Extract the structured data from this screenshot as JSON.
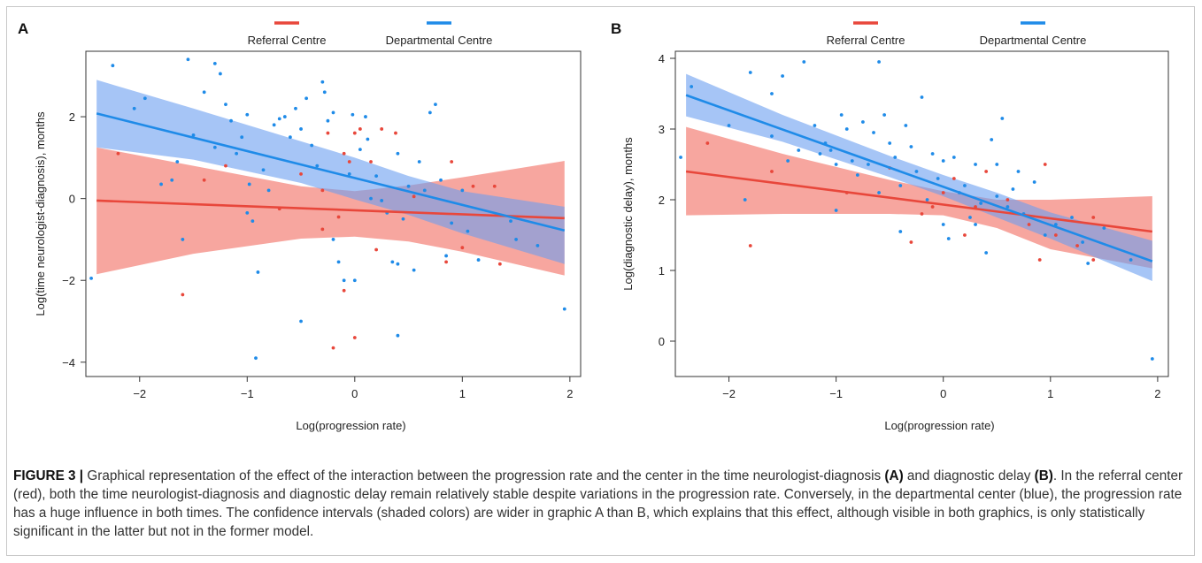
{
  "chart_data": [
    {
      "type": "scatter",
      "panel_label": "A",
      "xlabel": "Log(progression rate)",
      "ylabel": "Log(time neurologist-diagnosis), months",
      "xlim": [
        -2.5,
        2.1
      ],
      "ylim": [
        -4.35,
        3.6
      ],
      "xticks": [
        -2,
        -1,
        0,
        1,
        2
      ],
      "yticks": [
        -4,
        -2,
        0,
        2
      ],
      "legend_position": "top-center",
      "series": [
        {
          "name": "Referral Centre",
          "color": "#e8473b",
          "band_color": "#f4837a",
          "fit_line": {
            "x": [
              -2.4,
              1.95
            ],
            "y": [
              -0.05,
              -0.48
            ]
          },
          "ci_upper": [
            [
              -2.4,
              1.25
            ],
            [
              -1.5,
              0.8
            ],
            [
              -0.5,
              0.3
            ],
            [
              0.0,
              0.18
            ],
            [
              0.5,
              0.32
            ],
            [
              1.0,
              0.52
            ],
            [
              1.95,
              0.92
            ]
          ],
          "ci_lower": [
            [
              -2.4,
              -1.85
            ],
            [
              -1.5,
              -1.35
            ],
            [
              -0.5,
              -0.98
            ],
            [
              0.0,
              -0.93
            ],
            [
              0.5,
              -1.05
            ],
            [
              1.0,
              -1.3
            ],
            [
              1.95,
              -1.88
            ]
          ],
          "points": [
            [
              -2.2,
              1.1
            ],
            [
              -1.6,
              -2.35
            ],
            [
              -1.4,
              0.45
            ],
            [
              -1.2,
              0.8
            ],
            [
              -0.7,
              -0.25
            ],
            [
              -0.5,
              0.6
            ],
            [
              -0.3,
              0.2
            ],
            [
              -0.3,
              -0.75
            ],
            [
              -0.25,
              1.6
            ],
            [
              -0.2,
              -3.65
            ],
            [
              -0.15,
              -0.45
            ],
            [
              -0.1,
              1.1
            ],
            [
              -0.1,
              -2.25
            ],
            [
              -0.05,
              0.9
            ],
            [
              0.0,
              -3.4
            ],
            [
              0.0,
              1.6
            ],
            [
              0.05,
              1.7
            ],
            [
              0.15,
              0.9
            ],
            [
              0.2,
              -1.25
            ],
            [
              0.25,
              1.7
            ],
            [
              0.38,
              1.6
            ],
            [
              0.55,
              0.05
            ],
            [
              0.85,
              -1.55
            ],
            [
              0.9,
              0.9
            ],
            [
              1.0,
              -1.2
            ],
            [
              1.1,
              0.3
            ],
            [
              1.3,
              0.3
            ],
            [
              1.35,
              -1.6
            ]
          ]
        },
        {
          "name": "Departmental Centre",
          "color": "#1f8be8",
          "band_color": "#6b9ff0",
          "fit_line": {
            "x": [
              -2.4,
              1.95
            ],
            "y": [
              2.08,
              -0.78
            ]
          },
          "ci_upper": [
            [
              -2.4,
              2.9
            ],
            [
              -1.5,
              2.2
            ],
            [
              -0.5,
              1.4
            ],
            [
              0.0,
              1.0
            ],
            [
              0.5,
              0.55
            ],
            [
              1.0,
              0.18
            ],
            [
              1.95,
              -0.2
            ]
          ],
          "ci_lower": [
            [
              -2.4,
              1.25
            ],
            [
              -1.5,
              0.95
            ],
            [
              -0.5,
              0.38
            ],
            [
              0.0,
              -0.02
            ],
            [
              0.5,
              -0.4
            ],
            [
              1.0,
              -0.85
            ],
            [
              1.95,
              -1.6
            ]
          ],
          "points": [
            [
              -2.45,
              -1.95
            ],
            [
              -2.25,
              3.25
            ],
            [
              -2.05,
              2.2
            ],
            [
              -1.95,
              2.45
            ],
            [
              -1.8,
              0.35
            ],
            [
              -1.7,
              0.45
            ],
            [
              -1.55,
              3.4
            ],
            [
              -1.5,
              1.55
            ],
            [
              -1.4,
              2.6
            ],
            [
              -1.3,
              3.3
            ],
            [
              -1.3,
              1.25
            ],
            [
              -1.25,
              3.05
            ],
            [
              -1.2,
              2.3
            ],
            [
              -1.15,
              1.9
            ],
            [
              -1.1,
              1.1
            ],
            [
              -1.05,
              1.5
            ],
            [
              -1.0,
              2.05
            ],
            [
              -1.0,
              -0.35
            ],
            [
              -0.98,
              0.35
            ],
            [
              -0.95,
              -0.55
            ],
            [
              -0.92,
              -3.9
            ],
            [
              -0.9,
              -1.8
            ],
            [
              -0.85,
              0.7
            ],
            [
              -0.8,
              0.2
            ],
            [
              -0.75,
              1.8
            ],
            [
              -0.7,
              1.95
            ],
            [
              -0.65,
              2.0
            ],
            [
              -0.6,
              1.5
            ],
            [
              -0.55,
              2.2
            ],
            [
              -0.5,
              1.7
            ],
            [
              -0.45,
              2.45
            ],
            [
              -0.4,
              1.3
            ],
            [
              -0.35,
              0.8
            ],
            [
              -0.3,
              2.85
            ],
            [
              -0.28,
              2.6
            ],
            [
              -0.25,
              1.9
            ],
            [
              -0.2,
              2.1
            ],
            [
              -0.2,
              -1.0
            ],
            [
              -0.15,
              -1.55
            ],
            [
              -0.1,
              -2.0
            ],
            [
              -0.05,
              0.6
            ],
            [
              -0.02,
              2.05
            ],
            [
              0.0,
              -2.0
            ],
            [
              0.05,
              1.2
            ],
            [
              0.1,
              2.0
            ],
            [
              0.12,
              1.45
            ],
            [
              0.15,
              0.0
            ],
            [
              0.2,
              0.55
            ],
            [
              0.25,
              -0.05
            ],
            [
              0.3,
              -0.35
            ],
            [
              0.35,
              -1.55
            ],
            [
              0.4,
              -1.6
            ],
            [
              0.4,
              -3.35
            ],
            [
              0.45,
              -0.5
            ],
            [
              0.5,
              0.3
            ],
            [
              0.55,
              -1.75
            ],
            [
              0.6,
              0.9
            ],
            [
              0.65,
              0.2
            ],
            [
              0.7,
              2.1
            ],
            [
              0.75,
              2.3
            ],
            [
              0.8,
              0.45
            ],
            [
              0.85,
              -1.4
            ],
            [
              0.9,
              -0.6
            ],
            [
              1.0,
              0.2
            ],
            [
              1.05,
              -0.8
            ],
            [
              1.15,
              -1.5
            ],
            [
              1.45,
              -0.55
            ],
            [
              1.5,
              -1.0
            ],
            [
              1.7,
              -1.15
            ],
            [
              1.95,
              -2.7
            ],
            [
              -1.6,
              -1.0
            ],
            [
              -1.65,
              0.9
            ],
            [
              -0.5,
              -3.0
            ],
            [
              0.4,
              1.1
            ]
          ]
        }
      ]
    },
    {
      "type": "scatter",
      "panel_label": "B",
      "xlabel": "Log(progression rate)",
      "ylabel": "Log(diagnostic delay), months",
      "xlim": [
        -2.5,
        2.1
      ],
      "ylim": [
        -0.5,
        4.1
      ],
      "xticks": [
        -2,
        -1,
        0,
        1,
        2
      ],
      "yticks": [
        0,
        1,
        2,
        3,
        4
      ],
      "legend_position": "top-center",
      "series": [
        {
          "name": "Referral Centre",
          "color": "#e8473b",
          "band_color": "#f4837a",
          "fit_line": {
            "x": [
              -2.4,
              1.95
            ],
            "y": [
              2.4,
              1.55
            ]
          },
          "ci_upper": [
            [
              -2.4,
              3.03
            ],
            [
              -1.5,
              2.65
            ],
            [
              -0.5,
              2.28
            ],
            [
              0.0,
              2.12
            ],
            [
              0.5,
              2.0
            ],
            [
              1.0,
              2.0
            ],
            [
              1.95,
              2.05
            ]
          ],
          "ci_lower": [
            [
              -2.4,
              1.78
            ],
            [
              -1.5,
              1.8
            ],
            [
              -0.5,
              1.8
            ],
            [
              0.0,
              1.78
            ],
            [
              0.5,
              1.6
            ],
            [
              1.0,
              1.3
            ],
            [
              1.95,
              1.03
            ]
          ],
          "points": [
            [
              -2.2,
              2.8
            ],
            [
              -1.8,
              1.35
            ],
            [
              -1.6,
              2.4
            ],
            [
              -0.9,
              2.1
            ],
            [
              -0.5,
              2.45
            ],
            [
              -0.3,
              1.4
            ],
            [
              -0.2,
              1.8
            ],
            [
              -0.1,
              1.9
            ],
            [
              0.0,
              2.1
            ],
            [
              0.1,
              2.3
            ],
            [
              0.2,
              1.5
            ],
            [
              0.3,
              1.9
            ],
            [
              0.4,
              2.4
            ],
            [
              0.6,
              2.0
            ],
            [
              0.8,
              1.65
            ],
            [
              0.9,
              1.15
            ],
            [
              0.95,
              2.5
            ],
            [
              1.05,
              1.5
            ],
            [
              1.25,
              1.35
            ],
            [
              1.4,
              1.15
            ],
            [
              1.4,
              1.75
            ]
          ]
        },
        {
          "name": "Departmental Centre",
          "color": "#1f8be8",
          "band_color": "#6b9ff0",
          "fit_line": {
            "x": [
              -2.4,
              1.95
            ],
            "y": [
              3.48,
              1.13
            ]
          },
          "ci_upper": [
            [
              -2.4,
              3.78
            ],
            [
              -1.5,
              3.2
            ],
            [
              -0.5,
              2.62
            ],
            [
              0.0,
              2.35
            ],
            [
              0.5,
              2.1
            ],
            [
              1.0,
              1.82
            ],
            [
              1.95,
              1.42
            ]
          ],
          "ci_lower": [
            [
              -2.4,
              3.18
            ],
            [
              -1.5,
              2.82
            ],
            [
              -0.5,
              2.32
            ],
            [
              0.0,
              2.05
            ],
            [
              0.5,
              1.75
            ],
            [
              1.0,
              1.45
            ],
            [
              1.95,
              0.85
            ]
          ],
          "points": [
            [
              -2.45,
              2.6
            ],
            [
              -2.35,
              3.6
            ],
            [
              -2.0,
              3.05
            ],
            [
              -1.85,
              2.0
            ],
            [
              -1.8,
              3.8
            ],
            [
              -1.6,
              3.5
            ],
            [
              -1.5,
              3.75
            ],
            [
              -1.45,
              2.55
            ],
            [
              -1.35,
              2.7
            ],
            [
              -1.3,
              3.95
            ],
            [
              -1.2,
              3.05
            ],
            [
              -1.15,
              2.65
            ],
            [
              -1.1,
              2.8
            ],
            [
              -1.05,
              2.7
            ],
            [
              -1.0,
              2.5
            ],
            [
              -0.95,
              3.2
            ],
            [
              -0.9,
              3.0
            ],
            [
              -0.85,
              2.55
            ],
            [
              -0.8,
              2.35
            ],
            [
              -0.75,
              3.1
            ],
            [
              -0.7,
              2.5
            ],
            [
              -0.65,
              2.95
            ],
            [
              -0.6,
              3.95
            ],
            [
              -0.6,
              2.1
            ],
            [
              -0.55,
              3.2
            ],
            [
              -0.5,
              2.8
            ],
            [
              -0.45,
              2.6
            ],
            [
              -0.4,
              2.2
            ],
            [
              -0.35,
              3.05
            ],
            [
              -0.3,
              2.75
            ],
            [
              -0.25,
              2.4
            ],
            [
              -0.2,
              3.45
            ],
            [
              -0.15,
              2.0
            ],
            [
              -0.1,
              2.65
            ],
            [
              -0.05,
              2.3
            ],
            [
              0.0,
              2.55
            ],
            [
              0.0,
              1.65
            ],
            [
              0.05,
              1.45
            ],
            [
              0.1,
              2.6
            ],
            [
              0.15,
              2.1
            ],
            [
              0.2,
              2.2
            ],
            [
              0.25,
              1.75
            ],
            [
              0.3,
              2.5
            ],
            [
              0.35,
              1.95
            ],
            [
              0.4,
              1.25
            ],
            [
              0.45,
              2.85
            ],
            [
              0.5,
              2.05
            ],
            [
              0.55,
              3.15
            ],
            [
              0.6,
              1.9
            ],
            [
              0.65,
              2.15
            ],
            [
              0.7,
              2.4
            ],
            [
              0.75,
              1.8
            ],
            [
              0.85,
              2.25
            ],
            [
              0.95,
              1.5
            ],
            [
              1.05,
              1.65
            ],
            [
              1.2,
              1.75
            ],
            [
              1.3,
              1.4
            ],
            [
              1.35,
              1.1
            ],
            [
              1.5,
              1.6
            ],
            [
              1.75,
              1.15
            ],
            [
              1.95,
              -0.25
            ],
            [
              -1.0,
              1.85
            ],
            [
              -0.4,
              1.55
            ],
            [
              0.3,
              1.65
            ],
            [
              -1.6,
              2.9
            ],
            [
              0.5,
              2.5
            ]
          ]
        }
      ]
    }
  ],
  "caption": {
    "figure_label": "FIGURE 3 |",
    "text_1": " Graphical representation of the effect of the interaction between the progression rate and the center in the time neurologist-diagnosis ",
    "bold_a": "(A)",
    "text_2": " and diagnostic delay ",
    "bold_b": "(B)",
    "text_3": ". In the referral center (red), both the time neurologist-diagnosis and diagnostic delay remain relatively stable despite variations in the progression rate. Conversely, in the departmental center (blue), the progression rate has a huge influence in both times. The confidence intervals (shaded colors) are wider in graphic A than B, which explains that this effect, although visible in both graphics, is only statistically significant in the latter but not in the former model."
  }
}
